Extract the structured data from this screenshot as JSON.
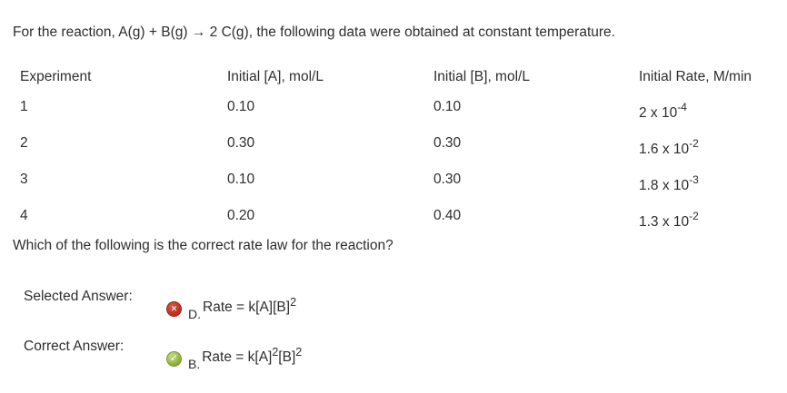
{
  "question": {
    "intro": "For the reaction, A(g) + B(g) → 2 C(g), the following data were obtained at constant temperature.",
    "prompt": "Which of the following is the correct rate law for the reaction?"
  },
  "data_table": {
    "headers": [
      "Experiment",
      "Initial [A], mol/L",
      "Initial [B], mol/L",
      "Initial Rate, M/min"
    ],
    "rows": [
      {
        "experiment": "1",
        "initial_a": "0.10",
        "initial_b": "0.10",
        "rate_mantissa": "2 x 10",
        "rate_exponent": "-4"
      },
      {
        "experiment": "2",
        "initial_a": "0.30",
        "initial_b": "0.30",
        "rate_mantissa": "1.6 x 10",
        "rate_exponent": "-2"
      },
      {
        "experiment": "3",
        "initial_a": "0.10",
        "initial_b": "0.30",
        "rate_mantissa": "1.8 x 10",
        "rate_exponent": "-3"
      },
      {
        "experiment": "4",
        "initial_a": "0.20",
        "initial_b": "0.40",
        "rate_mantissa": "1.3 x 10",
        "rate_exponent": "-2"
      }
    ]
  },
  "answers": {
    "selected": {
      "label": "Selected Answer:",
      "status": "incorrect",
      "icon": "x-circle-icon",
      "icon_glyph": "✕",
      "letter": "D.",
      "formula": {
        "part1": "Rate = k[A][B]",
        "sup1": "2"
      }
    },
    "correct": {
      "label": "Correct Answer:",
      "status": "correct",
      "icon": "check-circle-icon",
      "icon_glyph": "✓",
      "letter": "B.",
      "formula": {
        "part1": "Rate = k[A]",
        "sup1": "2",
        "part2": "[B]",
        "sup2": "2"
      }
    }
  },
  "colors": {
    "background": "#ffffff",
    "text": "#2e2e2e",
    "incorrect_icon": "#b92f20",
    "correct_icon": "#84a933"
  }
}
